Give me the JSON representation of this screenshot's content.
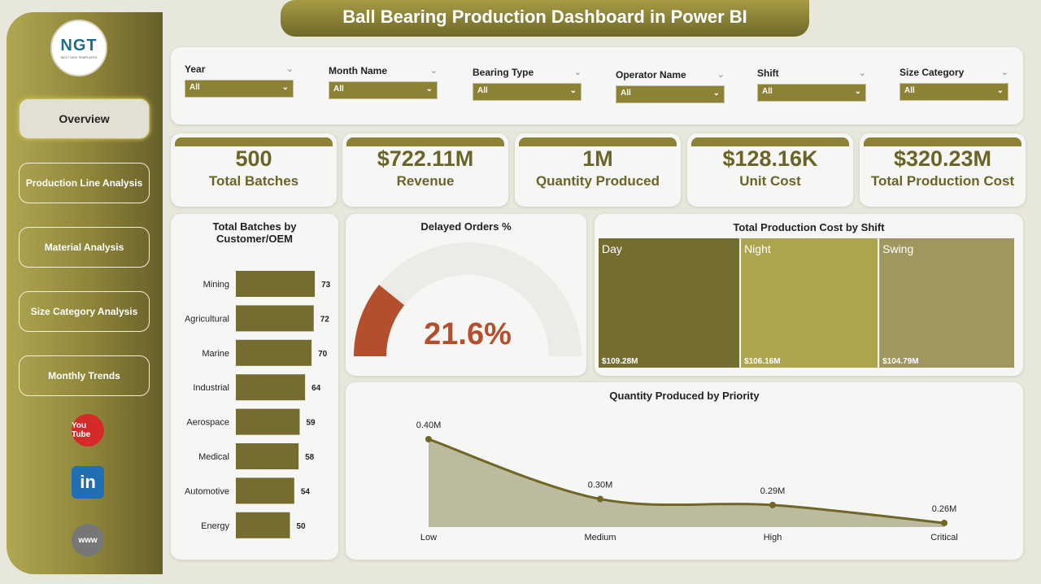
{
  "title": "Ball Bearing Production Dashboard in Power BI",
  "logo": {
    "text": "NGT",
    "sub": "NEXT GEN TEMPLATES"
  },
  "nav": [
    {
      "label": "Overview",
      "active": true
    },
    {
      "label": "Production Line Analysis"
    },
    {
      "label": "Material Analysis"
    },
    {
      "label": "Size Category Analysis"
    },
    {
      "label": "Monthly Trends"
    }
  ],
  "social": [
    {
      "icon": "youtube-icon",
      "label": "You Tube",
      "color": "#d62a2a"
    },
    {
      "icon": "linkedin-icon",
      "label": "in",
      "color": "#1f6fb2"
    },
    {
      "icon": "globe-icon",
      "label": "www",
      "color": "#777"
    }
  ],
  "filters": [
    {
      "label": "Year",
      "value": "All"
    },
    {
      "label": "Month Name",
      "value": "All"
    },
    {
      "label": "Bearing Type",
      "value": "All"
    },
    {
      "label": "Operator Name",
      "value": "All"
    },
    {
      "label": "Shift",
      "value": "All"
    },
    {
      "label": "Size Category",
      "value": "All"
    }
  ],
  "kpis": [
    {
      "value": "500",
      "label": "Total Batches"
    },
    {
      "value": "$722.11M",
      "label": "Revenue"
    },
    {
      "value": "1M",
      "label": "Quantity Produced"
    },
    {
      "value": "$128.16K",
      "label": "Unit Cost"
    },
    {
      "value": "$320.23M",
      "label": "Total Production Cost"
    }
  ],
  "colors": {
    "accent": "#8c8236",
    "bar": "#756c2f",
    "gauge": "#b34f2c",
    "line": "#6f6628",
    "area": "#bdbb9f"
  },
  "chart_data": [
    {
      "type": "bar",
      "orientation": "horizontal",
      "title": "Total Batches by Customer/OEM",
      "categories": [
        "Mining",
        "Agricultural",
        "Marine",
        "Industrial",
        "Aerospace",
        "Medical",
        "Automotive",
        "Energy"
      ],
      "values": [
        73,
        72,
        70,
        64,
        59,
        58,
        54,
        50
      ],
      "data_labels": true
    },
    {
      "type": "gauge",
      "title": "Delayed Orders %",
      "value": 21.6,
      "label": "21.6%",
      "range": [
        0,
        100
      ]
    },
    {
      "type": "treemap",
      "title": "Total Production Cost by Shift",
      "categories": [
        "Day",
        "Night",
        "Swing"
      ],
      "values": [
        109.28,
        106.16,
        104.79
      ],
      "labels": [
        "$109.28M",
        "$106.16M",
        "$104.79M"
      ],
      "colors": [
        "#746d30",
        "#ada44e",
        "#a09760"
      ]
    },
    {
      "type": "area",
      "title": "Quantity Produced by Priority",
      "categories": [
        "Low",
        "Medium",
        "High",
        "Critical"
      ],
      "values": [
        0.4,
        0.3,
        0.29,
        0.26
      ],
      "labels": [
        "0.40M",
        "0.30M",
        "0.29M",
        "0.26M"
      ]
    }
  ]
}
